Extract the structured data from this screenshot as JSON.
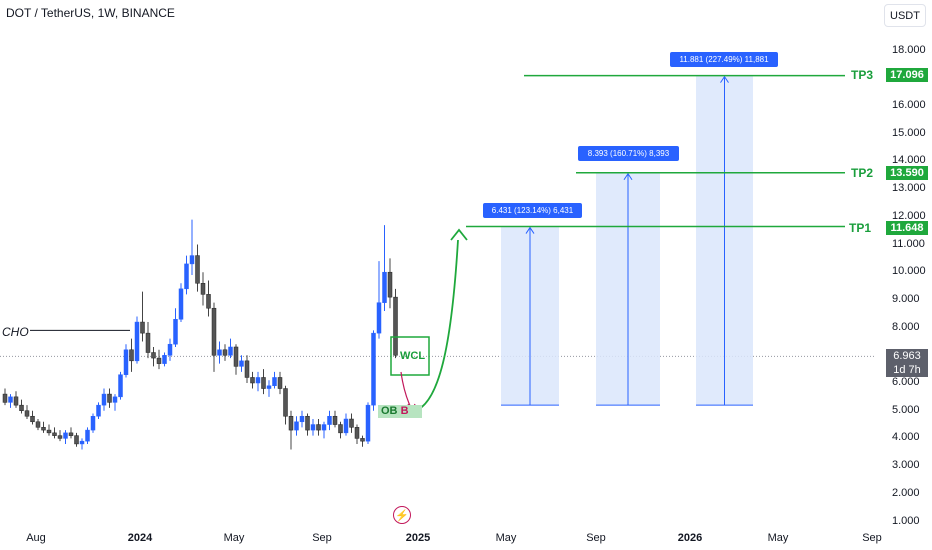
{
  "header": {
    "symbol_line": "DOT / TetherUS, 1W, BINANCE",
    "currency_button": "USDT"
  },
  "price_axis": {
    "ticks": [
      "18.000",
      "17.000",
      "16.000",
      "15.000",
      "14.000",
      "13.000",
      "12.000",
      "11.000",
      "10.000",
      "9.000",
      "8.000",
      "7.000",
      "6.000",
      "5.000",
      "4.000",
      "3.000",
      "2.000",
      "1.000"
    ]
  },
  "time_axis": {
    "ticks": [
      {
        "label": "Aug",
        "bold": false
      },
      {
        "label": "2024",
        "bold": true
      },
      {
        "label": "May",
        "bold": false
      },
      {
        "label": "Sep",
        "bold": false
      },
      {
        "label": "2025",
        "bold": true
      },
      {
        "label": "May",
        "bold": false
      },
      {
        "label": "Sep",
        "bold": false
      },
      {
        "label": "2026",
        "bold": true
      },
      {
        "label": "May",
        "bold": false
      },
      {
        "label": "Sep",
        "bold": false
      }
    ]
  },
  "current_price": {
    "value": "6.963",
    "countdown": "1d 7h"
  },
  "targets": [
    {
      "label": "TP1",
      "value": "11.648"
    },
    {
      "label": "TP2",
      "value": "13.590"
    },
    {
      "label": "TP3",
      "value": "17.096"
    }
  ],
  "projections": [
    {
      "text": "6.431 (123.14%) 6,431"
    },
    {
      "text": "8.393 (160.71%) 8,393"
    },
    {
      "text": "11.881 (227.49%) 11,881"
    }
  ],
  "annotations": {
    "cho": "CHO",
    "wcl": "WCL",
    "ob": "OB",
    "ob_suffix": "B"
  },
  "colors": {
    "up": "#089981",
    "down": "#f23645",
    "target": "#1fa83c",
    "projection": "#2962ff",
    "projection_fill": "#dbe6fb"
  },
  "chart_data": {
    "type": "candlestick",
    "timeframe": "1W",
    "ylim": [
      1,
      18.5
    ],
    "candles": [
      [
        5.6,
        5.8,
        5.2,
        5.3
      ],
      [
        5.3,
        5.6,
        5.1,
        5.5
      ],
      [
        5.5,
        5.7,
        5.1,
        5.2
      ],
      [
        5.2,
        5.4,
        4.9,
        5.0
      ],
      [
        5.0,
        5.2,
        4.7,
        4.8
      ],
      [
        4.8,
        5.0,
        4.5,
        4.6
      ],
      [
        4.6,
        4.7,
        4.3,
        4.4
      ],
      [
        4.4,
        4.6,
        4.2,
        4.3
      ],
      [
        4.3,
        4.5,
        4.1,
        4.2
      ],
      [
        4.2,
        4.4,
        4.0,
        4.1
      ],
      [
        4.1,
        4.3,
        3.9,
        4.0
      ],
      [
        4.0,
        4.3,
        3.8,
        4.2
      ],
      [
        4.2,
        4.4,
        4.0,
        4.1
      ],
      [
        4.1,
        4.2,
        3.7,
        3.8
      ],
      [
        3.8,
        4.0,
        3.6,
        3.9
      ],
      [
        3.9,
        4.4,
        3.8,
        4.3
      ],
      [
        4.3,
        4.9,
        4.2,
        4.8
      ],
      [
        4.8,
        5.3,
        4.7,
        5.2
      ],
      [
        5.2,
        5.8,
        5.0,
        5.6
      ],
      [
        5.6,
        5.8,
        5.1,
        5.3
      ],
      [
        5.3,
        5.6,
        5.0,
        5.5
      ],
      [
        5.5,
        6.4,
        5.4,
        6.3
      ],
      [
        6.3,
        7.4,
        6.2,
        7.2
      ],
      [
        7.2,
        7.6,
        6.4,
        6.8
      ],
      [
        6.8,
        8.4,
        6.7,
        8.2
      ],
      [
        8.2,
        9.3,
        7.5,
        7.8
      ],
      [
        7.8,
        8.2,
        6.9,
        7.1
      ],
      [
        7.1,
        7.3,
        6.6,
        6.9
      ],
      [
        6.9,
        7.2,
        6.5,
        6.7
      ],
      [
        6.7,
        7.1,
        6.6,
        7.0
      ],
      [
        7.0,
        7.6,
        6.8,
        7.4
      ],
      [
        7.4,
        8.7,
        7.3,
        8.3
      ],
      [
        8.3,
        9.6,
        8.2,
        9.4
      ],
      [
        9.4,
        10.6,
        9.2,
        10.3
      ],
      [
        10.3,
        11.9,
        9.9,
        10.6
      ],
      [
        10.6,
        11.0,
        9.3,
        9.6
      ],
      [
        9.6,
        10.0,
        8.8,
        9.2
      ],
      [
        9.2,
        9.7,
        8.4,
        8.7
      ],
      [
        8.7,
        8.9,
        6.4,
        7.0
      ],
      [
        7.0,
        7.5,
        6.7,
        7.2
      ],
      [
        7.2,
        7.4,
        6.8,
        7.0
      ],
      [
        7.0,
        7.6,
        6.9,
        7.3
      ],
      [
        7.3,
        7.4,
        6.3,
        6.6
      ],
      [
        6.6,
        7.0,
        6.4,
        6.8
      ],
      [
        6.8,
        7.0,
        6.0,
        6.2
      ],
      [
        6.2,
        6.4,
        5.8,
        6.0
      ],
      [
        6.0,
        6.4,
        5.7,
        6.2
      ],
      [
        6.2,
        6.5,
        5.6,
        5.8
      ],
      [
        5.8,
        6.1,
        5.5,
        5.9
      ],
      [
        5.9,
        6.4,
        5.8,
        6.2
      ],
      [
        6.2,
        6.4,
        5.6,
        5.8
      ],
      [
        5.8,
        5.9,
        4.5,
        4.8
      ],
      [
        4.8,
        5.0,
        3.6,
        4.3
      ],
      [
        4.3,
        4.8,
        4.1,
        4.6
      ],
      [
        4.6,
        5.0,
        4.4,
        4.8
      ],
      [
        4.8,
        4.9,
        4.1,
        4.3
      ],
      [
        4.3,
        4.7,
        4.1,
        4.5
      ],
      [
        4.5,
        4.7,
        4.1,
        4.3
      ],
      [
        4.3,
        4.6,
        4.0,
        4.5
      ],
      [
        4.5,
        5.0,
        4.3,
        4.8
      ],
      [
        4.8,
        5.0,
        4.4,
        4.5
      ],
      [
        4.5,
        4.6,
        4.0,
        4.2
      ],
      [
        4.2,
        4.9,
        4.1,
        4.7
      ],
      [
        4.7,
        4.9,
        4.2,
        4.4
      ],
      [
        4.4,
        4.5,
        3.8,
        4.0
      ],
      [
        4.0,
        4.1,
        3.7,
        3.9
      ],
      [
        3.9,
        5.3,
        3.8,
        5.2
      ],
      [
        5.2,
        7.9,
        5.0,
        7.8
      ],
      [
        7.8,
        10.4,
        7.6,
        8.9
      ],
      [
        8.9,
        11.7,
        8.6,
        10.0
      ],
      [
        10.0,
        10.5,
        8.7,
        9.1
      ],
      [
        9.1,
        9.4,
        6.9,
        7.0
      ]
    ]
  }
}
